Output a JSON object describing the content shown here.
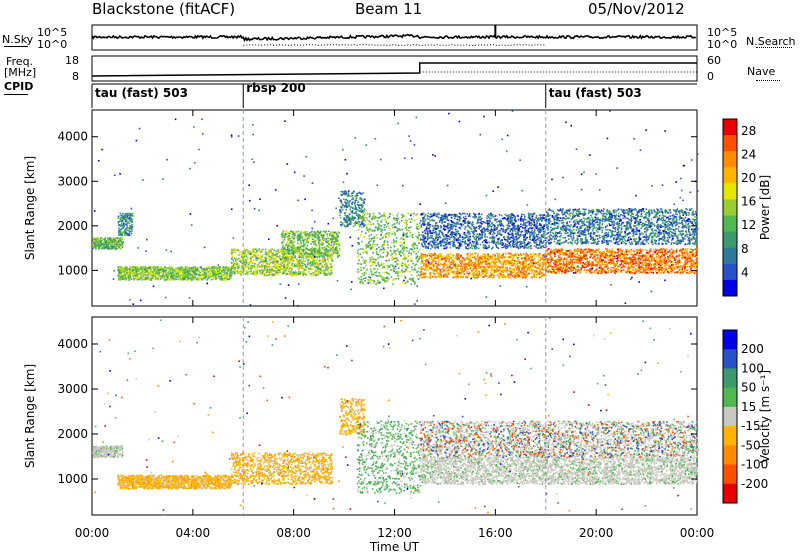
{
  "header": {
    "station": "Blackstone (fitACF)",
    "beam": "Beam 11",
    "date": "05/Nov/2012"
  },
  "summary_panels": {
    "nsky": {
      "left_label": "N.Sky",
      "right_label": "N.Search",
      "left_ticks": [
        "10^5",
        "10^0"
      ],
      "right_ticks": [
        "10^5",
        "10^0"
      ]
    },
    "freq": {
      "left_label_line1": "Freq.",
      "left_label_line2": "[MHz]",
      "right_label": "Nave",
      "left_ticks": [
        "18",
        "8"
      ],
      "right_ticks": [
        "60",
        "0"
      ]
    },
    "cpid": {
      "label": "CPID",
      "segments": [
        {
          "start": 0,
          "end": 6,
          "name": "tau (fast) 503"
        },
        {
          "start": 6,
          "end": 18,
          "name": "rbsp 200"
        },
        {
          "start": 18,
          "end": 24,
          "name": "tau (fast) 503"
        }
      ]
    }
  },
  "x_axis": {
    "label": "Time UT",
    "ticks": [
      "00:00",
      "04:00",
      "08:00",
      "12:00",
      "16:00",
      "20:00",
      "00:00"
    ],
    "tick_hours": [
      0,
      4,
      8,
      12,
      16,
      20,
      24
    ]
  },
  "chart_data": [
    {
      "type": "heatmap",
      "panel": "power",
      "ylabel": "Slant Range [km]",
      "yticks": [
        1000,
        2000,
        3000,
        4000
      ],
      "ylim": [
        200,
        4600
      ],
      "xlim": [
        0,
        24
      ],
      "colorbar": {
        "label": "Power [dB]",
        "ticks": [
          "4",
          "8",
          "12",
          "16",
          "20",
          "24",
          "28"
        ],
        "tick_values": [
          4,
          8,
          12,
          16,
          20,
          24,
          28
        ],
        "range": [
          0,
          30
        ],
        "colors": [
          "#0000e6",
          "#2850c8",
          "#2f7a9a",
          "#3c9a6e",
          "#4fb84f",
          "#9acd32",
          "#e6e600",
          "#ffb400",
          "#ff8c00",
          "#ff5000",
          "#e60000"
        ]
      },
      "scatter_segments": [
        {
          "t0": 0.0,
          "t1": 1.2,
          "r0": 1500,
          "r1": 1750,
          "level": 12
        },
        {
          "t0": 1.0,
          "t1": 1.6,
          "r0": 1800,
          "r1": 2300,
          "level": 8
        },
        {
          "t0": 1.0,
          "t1": 5.5,
          "r0": 800,
          "r1": 1100,
          "level": 14
        },
        {
          "t0": 5.5,
          "t1": 9.5,
          "r0": 900,
          "r1": 1500,
          "level": 15
        },
        {
          "t0": 7.5,
          "t1": 9.8,
          "r0": 1300,
          "r1": 1900,
          "level": 13
        },
        {
          "t0": 9.8,
          "t1": 10.8,
          "r0": 2000,
          "r1": 2800,
          "level": 8
        },
        {
          "t0": 10.5,
          "t1": 13.0,
          "r0": 700,
          "r1": 2300,
          "level": 13
        },
        {
          "t0": 13.0,
          "t1": 18.0,
          "r0": 850,
          "r1": 1400,
          "level": 22
        },
        {
          "t0": 13.0,
          "t1": 18.0,
          "r0": 1500,
          "r1": 2300,
          "level": 6
        },
        {
          "t0": 18.0,
          "t1": 24.0,
          "r0": 950,
          "r1": 1500,
          "level": 24
        },
        {
          "t0": 18.0,
          "t1": 24.0,
          "r0": 1600,
          "r1": 2400,
          "level": 7
        }
      ]
    },
    {
      "type": "heatmap",
      "panel": "velocity",
      "ylabel": "Slant Range [km]",
      "yticks": [
        1000,
        2000,
        3000,
        4000
      ],
      "ylim": [
        200,
        4600
      ],
      "xlim": [
        0,
        24
      ],
      "colorbar": {
        "label": "Velocity [m s⁻¹]",
        "ticks": [
          "200",
          "100",
          "50",
          "15",
          "-15",
          "-50",
          "-100",
          "-200"
        ],
        "colors": [
          "#0000e6",
          "#2850c8",
          "#3c9a6e",
          "#4fb84f",
          "#c8c8c0",
          "#ffb400",
          "#ff8c00",
          "#ff5000",
          "#e60000"
        ]
      },
      "scatter_segments": [
        {
          "t0": 0.0,
          "t1": 1.2,
          "r0": 1500,
          "r1": 1750,
          "cls": "gray"
        },
        {
          "t0": 1.0,
          "t1": 5.5,
          "r0": 800,
          "r1": 1100,
          "cls": "orange"
        },
        {
          "t0": 5.5,
          "t1": 9.5,
          "r0": 900,
          "r1": 1600,
          "cls": "orange"
        },
        {
          "t0": 9.8,
          "t1": 10.8,
          "r0": 2000,
          "r1": 2800,
          "cls": "orange"
        },
        {
          "t0": 10.5,
          "t1": 13.0,
          "r0": 700,
          "r1": 2300,
          "cls": "green"
        },
        {
          "t0": 13.0,
          "t1": 24.0,
          "r0": 900,
          "r1": 1500,
          "cls": "gray"
        },
        {
          "t0": 13.0,
          "t1": 24.0,
          "r0": 1500,
          "r1": 2300,
          "cls": "mixed"
        }
      ]
    }
  ]
}
